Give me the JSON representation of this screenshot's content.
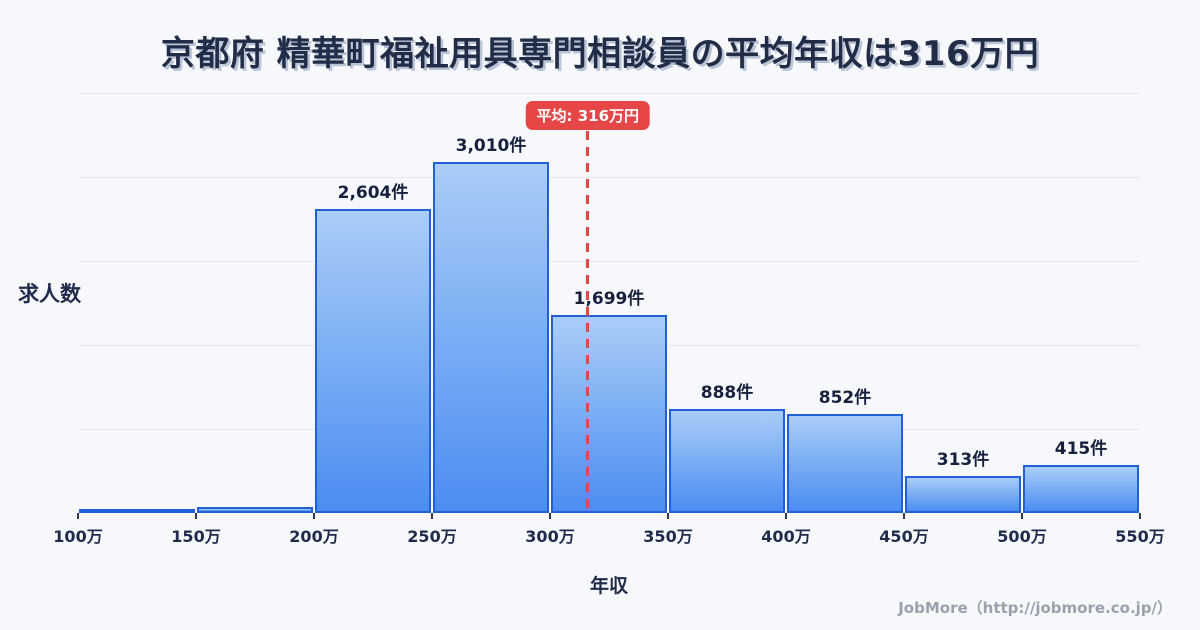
{
  "chart_data": {
    "type": "bar",
    "title": "京都府 精華町福祉用具専門相談員の平均年収は316万円",
    "xlabel": "年収",
    "ylabel": "求人数",
    "x_range_man_yen": [
      100,
      550
    ],
    "x_tick_labels": [
      "100万",
      "150万",
      "200万",
      "250万",
      "300万",
      "350万",
      "400万",
      "450万",
      "500万",
      "550万"
    ],
    "bins": [
      {
        "from": "100万",
        "to": "150万",
        "value": 20,
        "label": ""
      },
      {
        "from": "150万",
        "to": "200万",
        "value": 55,
        "label": ""
      },
      {
        "from": "200万",
        "to": "250万",
        "value": 2604,
        "label": "2,604件"
      },
      {
        "from": "250万",
        "to": "300万",
        "value": 3010,
        "label": "3,010件"
      },
      {
        "from": "300万",
        "to": "350万",
        "value": 1699,
        "label": "1,699件"
      },
      {
        "from": "350万",
        "to": "400万",
        "value": 888,
        "label": "888件"
      },
      {
        "from": "400万",
        "to": "450万",
        "value": 852,
        "label": "852件"
      },
      {
        "from": "450万",
        "to": "500万",
        "value": 313,
        "label": "313件"
      },
      {
        "from": "500万",
        "to": "550万",
        "value": 415,
        "label": "415件"
      }
    ],
    "ylim": [
      0,
      3600
    ],
    "grid": true,
    "grid_step": 720,
    "legend": "none",
    "average_line": {
      "label": "平均: 316万円",
      "value_man_yen": 316
    },
    "colors": {
      "background": "#f7f8fb",
      "bar_fill_top": "#aacdf7",
      "bar_fill_bottom": "#4b8df2",
      "bar_border": "#2160d8",
      "average_red": "#e64646",
      "text_navy": "#1f2b4b",
      "gridline": "#e4e7f0"
    }
  },
  "footer": {
    "credit": "JobMore（http://jobmore.co.jp/）"
  }
}
